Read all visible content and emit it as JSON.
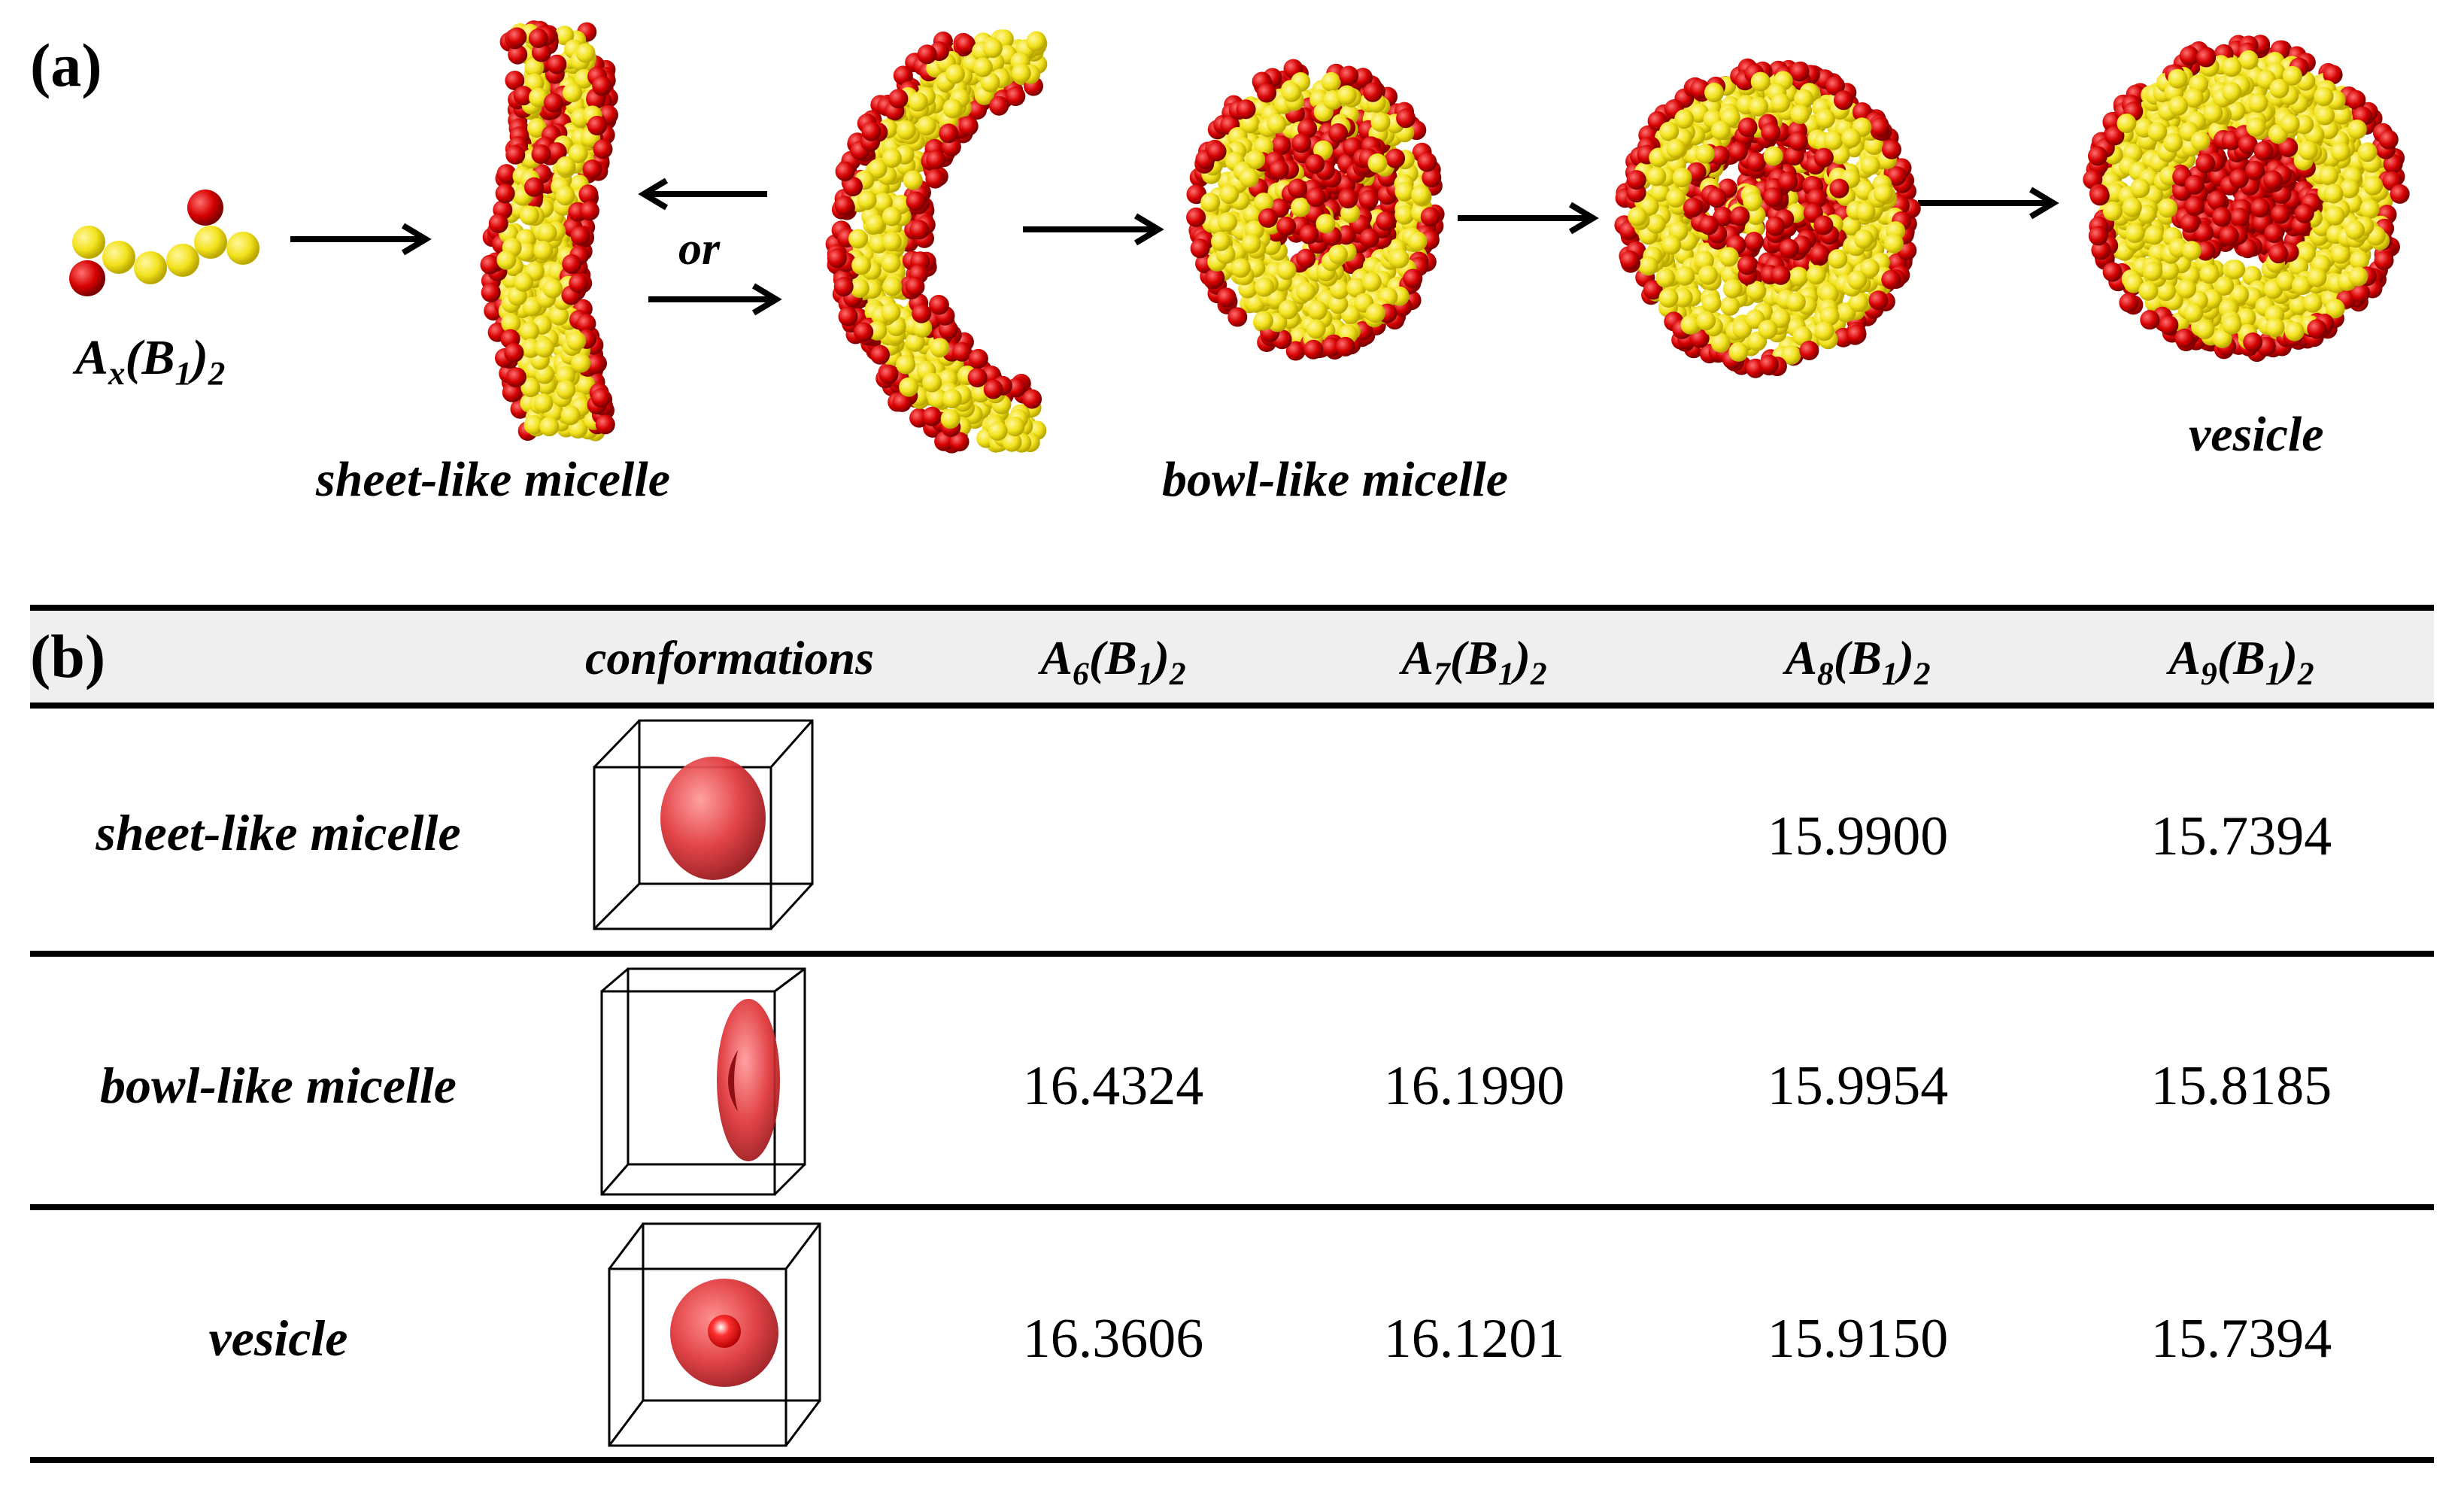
{
  "panel_a": {
    "label": "(a)",
    "molecule_label_main": "A",
    "molecule_label_sub_x": "x",
    "molecule_label_mid": "(B",
    "molecule_label_sub_1": "1",
    "molecule_label_close": ")",
    "molecule_label_sub_2": "2",
    "or_label": "or",
    "sheet_label": "sheet-like  micelle",
    "bowl_label": "bowl-like micelle",
    "vesicle_label": "vesicle"
  },
  "panel_b": {
    "label": "(b)",
    "conformations_header": "conformations",
    "columns": [
      {
        "main": "A",
        "sub_n": "6",
        "mid": "(B",
        "sub_1": "1",
        "close": ")",
        "sub_2": "2"
      },
      {
        "main": "A",
        "sub_n": "7",
        "mid": "(B",
        "sub_1": "1",
        "close": ")",
        "sub_2": "2"
      },
      {
        "main": "A",
        "sub_n": "8",
        "mid": "(B",
        "sub_1": "1",
        "close": ")",
        "sub_2": "2"
      },
      {
        "main": "A",
        "sub_n": "9",
        "mid": "(B",
        "sub_1": "1",
        "close": ")",
        "sub_2": "2"
      }
    ],
    "rows": [
      {
        "label": "sheet-like micelle",
        "values": [
          "",
          "",
          "15.9900",
          "15.7394"
        ]
      },
      {
        "label": "bowl-like micelle",
        "values": [
          "16.4324",
          "16.1990",
          "15.9954",
          "15.8185"
        ]
      },
      {
        "label": "vesicle",
        "values": [
          "16.3606",
          "16.1201",
          "15.9150",
          "15.7394"
        ]
      }
    ]
  },
  "colors": {
    "head_bead": "#d60000",
    "tail_bead": "#f2e21c",
    "table_header_bg": "#efefef",
    "isosurface": "#e0363a"
  }
}
